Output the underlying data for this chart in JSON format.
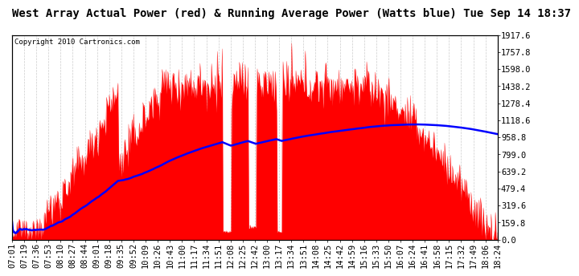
{
  "title": "West Array Actual Power (red) & Running Average Power (Watts blue) Tue Sep 14 18:37",
  "copyright": "Copyright 2010 Cartronics.com",
  "y_ticks": [
    0.0,
    159.8,
    319.6,
    479.4,
    639.2,
    799.0,
    958.8,
    1118.6,
    1278.4,
    1438.2,
    1598.0,
    1757.8,
    1917.6
  ],
  "ymax": 1917.6,
  "ymin": 0.0,
  "x_labels": [
    "07:01",
    "07:19",
    "07:36",
    "07:53",
    "08:10",
    "08:27",
    "08:44",
    "09:01",
    "09:18",
    "09:35",
    "09:52",
    "10:09",
    "10:26",
    "10:43",
    "11:00",
    "11:17",
    "11:34",
    "11:51",
    "12:08",
    "12:25",
    "12:42",
    "13:00",
    "13:17",
    "13:34",
    "13:51",
    "14:08",
    "14:25",
    "14:42",
    "14:59",
    "15:16",
    "15:33",
    "15:50",
    "16:07",
    "16:24",
    "16:41",
    "16:58",
    "17:15",
    "17:32",
    "17:49",
    "18:06",
    "18:24"
  ],
  "background_color": "#ffffff",
  "plot_bg_color": "#ffffff",
  "grid_color": "#cccccc",
  "fill_color": "#ff0000",
  "line_color": "#0000ff",
  "title_fontsize": 10,
  "axis_fontsize": 7.5,
  "copyright_fontsize": 6.5
}
